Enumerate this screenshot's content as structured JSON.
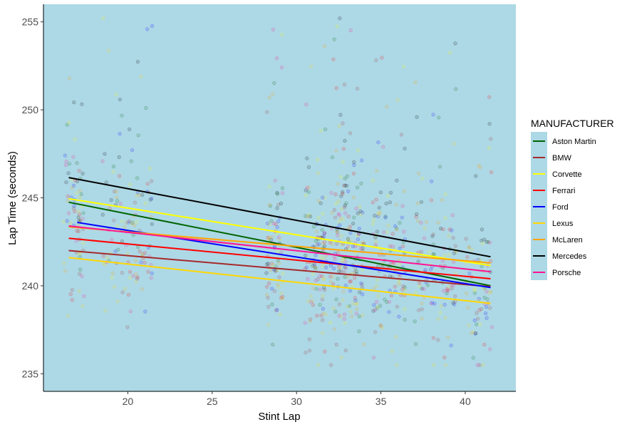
{
  "chart_data": {
    "type": "scatter",
    "title": "",
    "xlabel": "Stint Lap",
    "ylabel": "Lap Time (seconds)",
    "xlim": [
      15.0,
      43.0
    ],
    "ylim": [
      234.0,
      256.0
    ],
    "x_ticks": [
      20,
      25,
      30,
      35,
      40
    ],
    "x_tick_labels": [
      "20",
      "25",
      "30",
      "35",
      "40"
    ],
    "y_ticks": [
      235,
      240,
      245,
      250,
      255
    ],
    "y_tick_labels": [
      "235",
      "240",
      "245",
      "250",
      "255"
    ],
    "grid": false,
    "panel_background": "#add8e6",
    "legend": {
      "title": "MANUFACTURER",
      "position": "right"
    },
    "series": [
      {
        "name": "Aston Martin",
        "color": "#006400",
        "line": {
          "x": [
            16.5,
            41.5
          ],
          "y": [
            244.75,
            240.0
          ]
        }
      },
      {
        "name": "BMW",
        "color": "#a52a2a",
        "line": {
          "x": [
            16.5,
            41.5
          ],
          "y": [
            242.0,
            239.95
          ]
        }
      },
      {
        "name": "Corvette",
        "color": "#ffff00",
        "line": {
          "x": [
            16.5,
            41.5
          ],
          "y": [
            244.95,
            241.15
          ]
        }
      },
      {
        "name": "Ferrari",
        "color": "#ff0000",
        "line": {
          "x": [
            16.5,
            41.5
          ],
          "y": [
            242.7,
            240.4
          ]
        }
      },
      {
        "name": "Ford",
        "color": "#0000ff",
        "line": {
          "x": [
            17.0,
            41.5
          ],
          "y": [
            243.6,
            239.9
          ]
        }
      },
      {
        "name": "Lexus",
        "color": "#ffd700",
        "line": {
          "x": [
            16.5,
            41.5
          ],
          "y": [
            241.6,
            239.0
          ]
        }
      },
      {
        "name": "McLaren",
        "color": "#ffa500",
        "line": {
          "x": [
            16.5,
            41.5
          ],
          "y": [
            243.35,
            241.3
          ]
        }
      },
      {
        "name": "Mercedes",
        "color": "#000000",
        "line": {
          "x": [
            16.5,
            41.5
          ],
          "y": [
            246.15,
            241.65
          ]
        }
      },
      {
        "name": "Porsche",
        "color": "#ff1493",
        "line": {
          "x": [
            16.5,
            41.5
          ],
          "y": [
            243.4,
            240.8
          ]
        }
      }
    ]
  }
}
